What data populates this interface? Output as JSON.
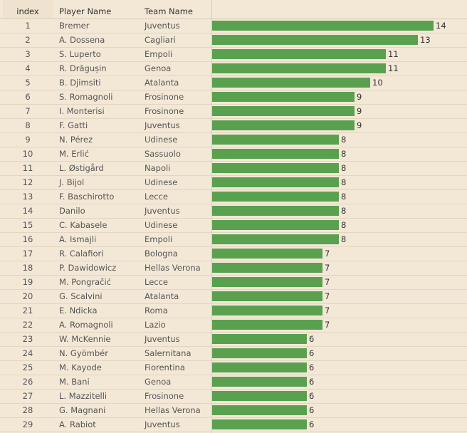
{
  "headers": {
    "index": "index",
    "player": "Player Name",
    "team": "Team Name"
  },
  "chart_data": {
    "type": "bar",
    "orientation": "horizontal",
    "colors": {
      "bar": "#59a14f"
    },
    "columns": [
      "index",
      "Player Name",
      "Team Name"
    ],
    "rows": [
      {
        "index": "1",
        "player": "Bremer",
        "team": "Juventus",
        "value": 14
      },
      {
        "index": "2",
        "player": "A. Dossena",
        "team": "Cagliari",
        "value": 13
      },
      {
        "index": "3",
        "player": "S. Luperto",
        "team": "Empoli",
        "value": 11
      },
      {
        "index": "4",
        "player": "R. Drăgușin",
        "team": "Genoa",
        "value": 11
      },
      {
        "index": "5",
        "player": "B. Djimsiti",
        "team": "Atalanta",
        "value": 10
      },
      {
        "index": "6",
        "player": "S. Romagnoli",
        "team": "Frosinone",
        "value": 9
      },
      {
        "index": "7",
        "player": "I. Monterisi",
        "team": "Frosinone",
        "value": 9
      },
      {
        "index": "8",
        "player": "F. Gatti",
        "team": "Juventus",
        "value": 9
      },
      {
        "index": "9",
        "player": "N. Pérez",
        "team": "Udinese",
        "value": 8
      },
      {
        "index": "10",
        "player": "M. Erlić",
        "team": "Sassuolo",
        "value": 8
      },
      {
        "index": "11",
        "player": "L. Østigård",
        "team": "Napoli",
        "value": 8
      },
      {
        "index": "12",
        "player": "J. Bijol",
        "team": "Udinese",
        "value": 8
      },
      {
        "index": "13",
        "player": "F. Baschirotto",
        "team": "Lecce",
        "value": 8
      },
      {
        "index": "14",
        "player": "Danilo",
        "team": "Juventus",
        "value": 8
      },
      {
        "index": "15",
        "player": "C. Kabasele",
        "team": "Udinese",
        "value": 8
      },
      {
        "index": "16",
        "player": "A. Ismajli",
        "team": "Empoli",
        "value": 8
      },
      {
        "index": "17",
        "player": "R. Calafiori",
        "team": "Bologna",
        "value": 7
      },
      {
        "index": "18",
        "player": "P. Dawidowicz",
        "team": "Hellas Verona",
        "value": 7
      },
      {
        "index": "19",
        "player": "M. Pongračić",
        "team": "Lecce",
        "value": 7
      },
      {
        "index": "20",
        "player": "G. Scalvini",
        "team": "Atalanta",
        "value": 7
      },
      {
        "index": "21",
        "player": "E. Ndicka",
        "team": "Roma",
        "value": 7
      },
      {
        "index": "22",
        "player": "A. Romagnoli",
        "team": "Lazio",
        "value": 7
      },
      {
        "index": "23",
        "player": "W. McKennie",
        "team": "Juventus",
        "value": 6
      },
      {
        "index": "24",
        "player": "N. Gyömbér",
        "team": "Salernitana",
        "value": 6
      },
      {
        "index": "25",
        "player": "M. Kayode",
        "team": "Fiorentina",
        "value": 6
      },
      {
        "index": "26",
        "player": "M. Bani",
        "team": "Genoa",
        "value": 6
      },
      {
        "index": "27",
        "player": "L. Mazzitelli",
        "team": "Frosinone",
        "value": 6
      },
      {
        "index": "28",
        "player": "G. Magnani",
        "team": "Hellas Verona",
        "value": 6
      },
      {
        "index": "29",
        "player": "A. Rabiot",
        "team": "Juventus",
        "value": 6
      }
    ]
  }
}
